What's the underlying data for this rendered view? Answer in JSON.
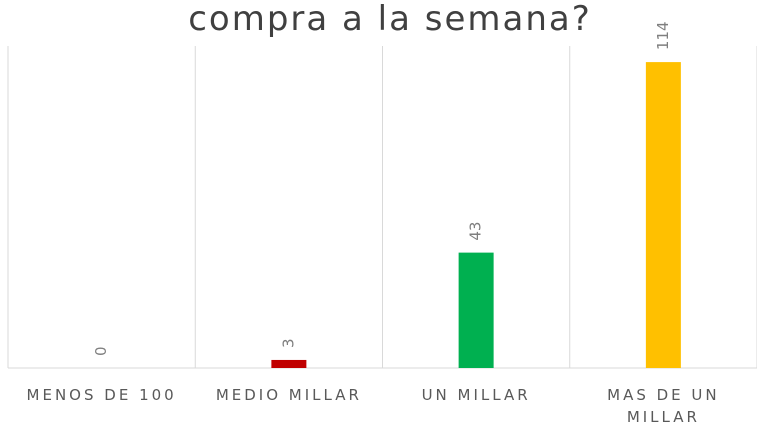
{
  "chart_data": {
    "type": "bar",
    "title": "compra a la semana?",
    "categories": [
      "MENOS DE 100",
      "MEDIO MILLAR",
      "UN MILLAR",
      "MAS DE UN MILLAR"
    ],
    "values": [
      0,
      3,
      43,
      114
    ],
    "colors": [
      "#4472c4",
      "#c00000",
      "#00b050",
      "#ffc000"
    ],
    "ylim": [
      0,
      120
    ]
  }
}
